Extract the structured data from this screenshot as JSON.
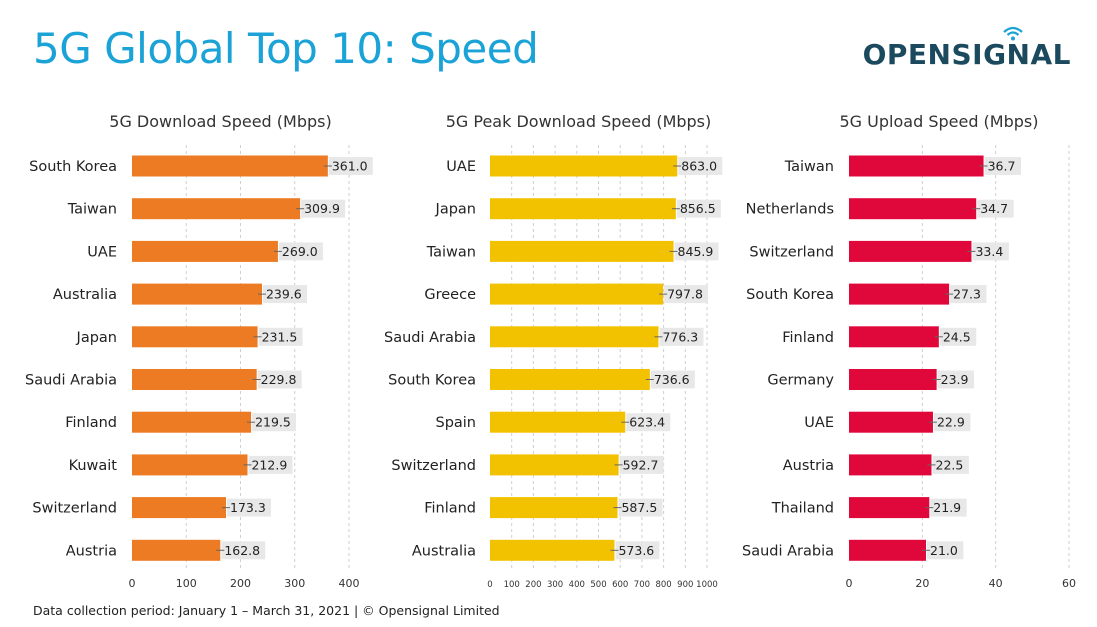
{
  "header": {
    "title": "5G Global Top 10: Speed",
    "logo_text": "OPENSIGNAL"
  },
  "footer": {
    "text": "Data collection period: January 1 – March 31, 2021  |  © Opensignal Limited"
  },
  "chart_data": [
    {
      "type": "bar",
      "orientation": "horizontal",
      "title": "5G Download Speed (Mbps)",
      "categories": [
        "South Korea",
        "Taiwan",
        "UAE",
        "Australia",
        "Japan",
        "Saudi Arabia",
        "Finland",
        "Kuwait",
        "Switzerland",
        "Austria"
      ],
      "values": [
        361.0,
        309.9,
        269.0,
        239.6,
        231.5,
        229.8,
        219.5,
        212.9,
        173.3,
        162.8
      ],
      "value_labels": [
        "361.0",
        "309.9",
        "269.0",
        "239.6",
        "231.5",
        "229.8",
        "219.5",
        "212.9",
        "173.3",
        "162.8"
      ],
      "xlim": [
        0,
        400
      ],
      "ticks": [
        0,
        100,
        200,
        300,
        400
      ],
      "tick_labels": [
        "0",
        "100",
        "200",
        "300",
        "400"
      ],
      "color": "#ec7b24",
      "grid": true
    },
    {
      "type": "bar",
      "orientation": "horizontal",
      "title": "5G Peak Download Speed (Mbps)",
      "categories": [
        "UAE",
        "Japan",
        "Taiwan",
        "Greece",
        "Saudi Arabia",
        "South Korea",
        "Spain",
        "Switzerland",
        "Finland",
        "Australia"
      ],
      "values": [
        863.0,
        856.5,
        845.9,
        797.8,
        776.3,
        736.6,
        623.4,
        592.7,
        587.5,
        573.6
      ],
      "value_labels": [
        "863.0",
        "856.5",
        "845.9",
        "797.8",
        "776.3",
        "736.6",
        "623.4",
        "592.7",
        "587.5",
        "573.6"
      ],
      "xlim": [
        0,
        1000
      ],
      "ticks": [
        0,
        100,
        200,
        300,
        400,
        500,
        600,
        700,
        800,
        900,
        1000
      ],
      "tick_labels": [
        "0",
        "100",
        "200",
        "300",
        "400",
        "500",
        "600",
        "700",
        "800",
        "900",
        "1000"
      ],
      "color": "#f2c200",
      "grid": true
    },
    {
      "type": "bar",
      "orientation": "horizontal",
      "title": "5G Upload Speed (Mbps)",
      "categories": [
        "Taiwan",
        "Netherlands",
        "Switzerland",
        "South Korea",
        "Finland",
        "Germany",
        "UAE",
        "Austria",
        "Thailand",
        "Saudi Arabia"
      ],
      "values": [
        36.7,
        34.7,
        33.4,
        27.3,
        24.5,
        23.9,
        22.9,
        22.5,
        21.9,
        21.0
      ],
      "value_labels": [
        "36.7",
        "34.7",
        "33.4",
        "27.3",
        "24.5",
        "23.9",
        "22.9",
        "22.5",
        "21.9",
        "21.0"
      ],
      "xlim": [
        0,
        60
      ],
      "ticks": [
        0,
        20,
        40,
        60
      ],
      "tick_labels": [
        "0",
        "20",
        "40",
        "60"
      ],
      "color": "#e0083a",
      "grid": true
    }
  ]
}
